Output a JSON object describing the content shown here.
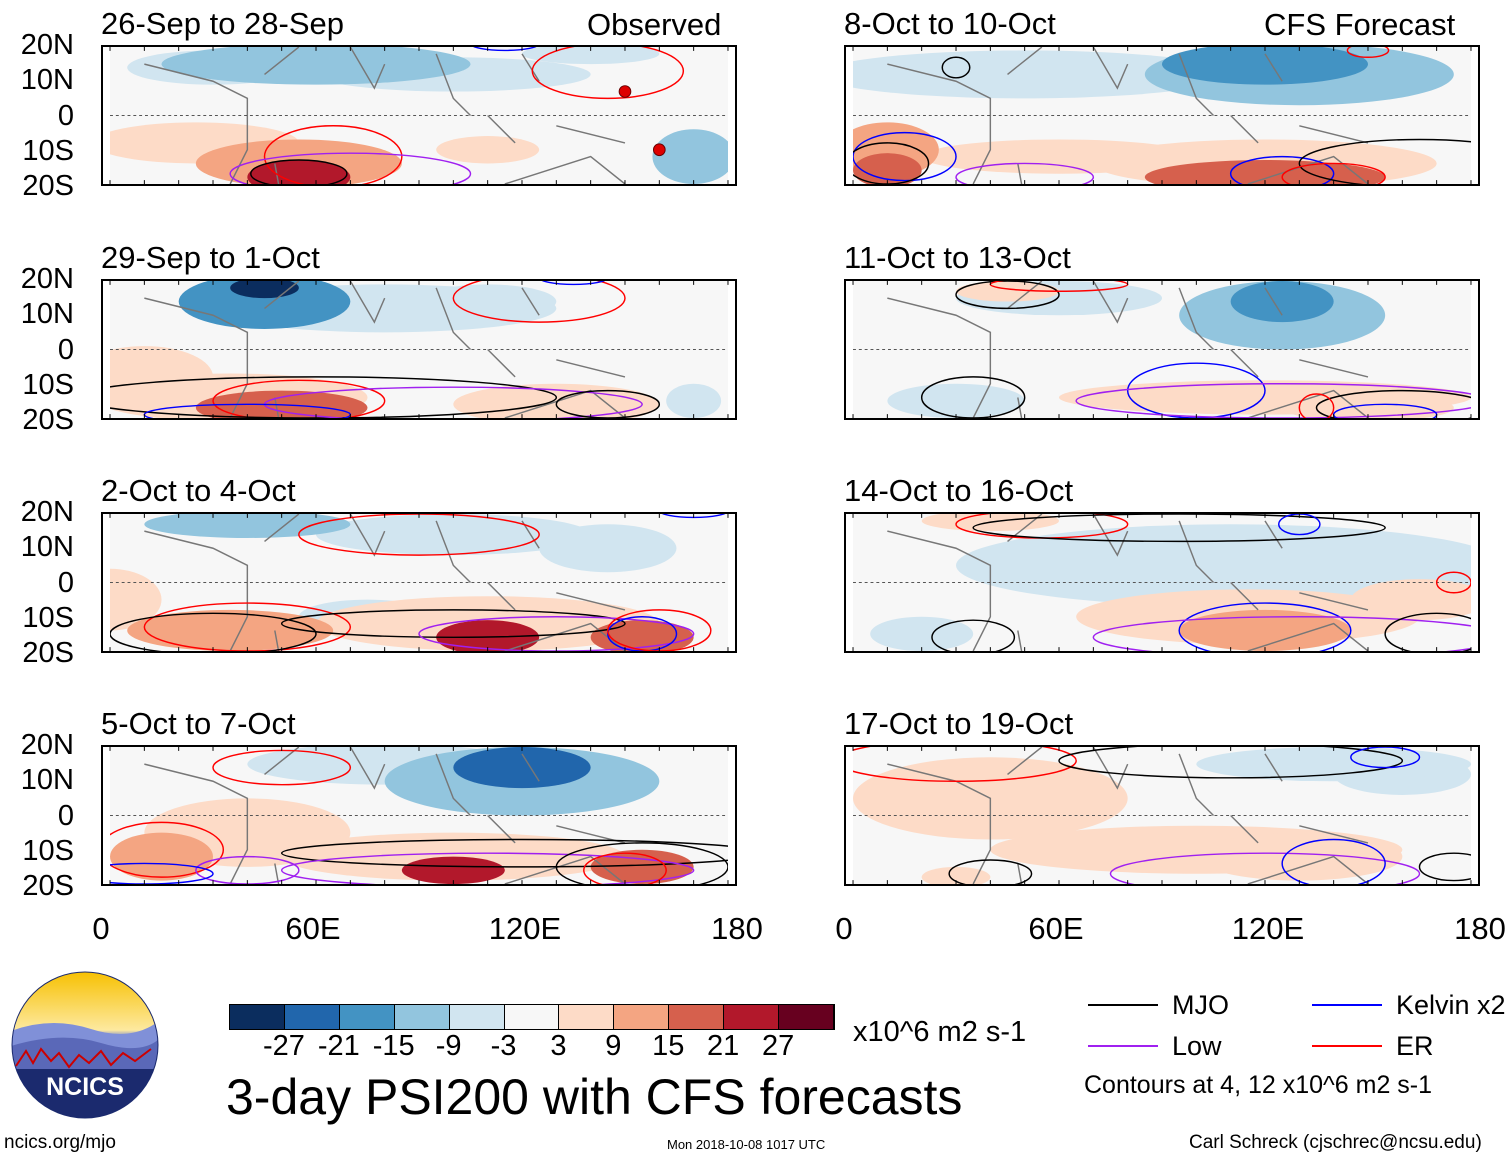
{
  "header": {
    "observed_label": "Observed",
    "forecast_label": "CFS Forecast"
  },
  "y_ticks": [
    "20N",
    "10N",
    "0",
    "10S",
    "20S"
  ],
  "x_ticks": [
    "0",
    "60E",
    "120E",
    "180"
  ],
  "colors": {
    "levels": [
      "#0b2d5e",
      "#2166ac",
      "#4393c3",
      "#92c5de",
      "#d1e5f0",
      "#f7f7f7",
      "#fddbc7",
      "#f4a582",
      "#d6604d",
      "#b2182b",
      "#67001f"
    ],
    "MJO": "#000000",
    "Kelvin": "#0000ff",
    "Low": "#a020f0",
    "ER": "#ff0000"
  },
  "chart_data": {
    "type": "map",
    "x_range": [
      0,
      180
    ],
    "y_range": [
      -20,
      20
    ],
    "level_bounds": [
      -27,
      -21,
      -15,
      -9,
      -3,
      3,
      9,
      15,
      21,
      27
    ],
    "panels": [
      {
        "title": "26-Sep to 28-Sep",
        "anomalies": [
          [
            60,
            15,
            -9,
            45,
            6
          ],
          [
            100,
            12,
            -6,
            40,
            5
          ],
          [
            30,
            14,
            -5,
            25,
            5
          ],
          [
            55,
            -18,
            27,
            15,
            5
          ],
          [
            55,
            -14,
            15,
            30,
            7
          ],
          [
            25,
            -8,
            8,
            30,
            6
          ],
          [
            110,
            -10,
            4,
            15,
            4
          ],
          [
            170,
            -12,
            -9,
            12,
            8
          ],
          [
            140,
            18,
            -3,
            20,
            3
          ]
        ],
        "contours": [
          [
            "ER",
            145,
            13,
            22,
            8
          ],
          [
            "ER",
            65,
            -12,
            20,
            9
          ],
          [
            "Low",
            70,
            -17,
            35,
            6
          ],
          [
            "MJO",
            55,
            -17,
            14,
            4
          ],
          [
            "Kelvin",
            115,
            21,
            10,
            2
          ]
        ],
        "markers": [
          [
            150,
            7
          ],
          [
            160,
            -10
          ]
        ]
      },
      {
        "title": "8-Oct to 10-Oct",
        "anomalies": [
          [
            120,
            15,
            -15,
            30,
            6
          ],
          [
            130,
            12,
            -9,
            45,
            9
          ],
          [
            50,
            12,
            -3,
            60,
            7
          ],
          [
            10,
            -10,
            15,
            15,
            8
          ],
          [
            10,
            -16,
            21,
            10,
            5
          ],
          [
            120,
            -18,
            21,
            35,
            5
          ],
          [
            120,
            -14,
            9,
            50,
            7
          ],
          [
            60,
            -12,
            4,
            40,
            5
          ]
        ],
        "contours": [
          [
            "MJO",
            30,
            14,
            4,
            3
          ],
          [
            "ER",
            150,
            19,
            6,
            2
          ],
          [
            "Kelvin",
            15,
            -12,
            15,
            7
          ],
          [
            "MJO",
            10,
            -14,
            12,
            6
          ],
          [
            "Low",
            50,
            -18,
            20,
            4
          ],
          [
            "Kelvin",
            125,
            -17,
            15,
            5
          ],
          [
            "MJO",
            165,
            -14,
            35,
            7
          ],
          [
            "ER",
            140,
            -18,
            15,
            4
          ]
        ]
      },
      {
        "title": "29-Sep to 1-Oct",
        "anomalies": [
          [
            45,
            14,
            -15,
            25,
            8
          ],
          [
            45,
            18,
            -27,
            10,
            3
          ],
          [
            80,
            12,
            -6,
            50,
            7
          ],
          [
            110,
            14,
            -3,
            20,
            5
          ],
          [
            50,
            -17,
            21,
            25,
            5
          ],
          [
            35,
            -14,
            9,
            40,
            7
          ],
          [
            10,
            -8,
            6,
            20,
            9
          ],
          [
            130,
            -16,
            6,
            30,
            6
          ],
          [
            170,
            -15,
            -3,
            8,
            5
          ]
        ],
        "contours": [
          [
            "ER",
            125,
            15,
            25,
            7
          ],
          [
            "Kelvin",
            135,
            21,
            10,
            2
          ],
          [
            "ER",
            55,
            -15,
            25,
            6
          ],
          [
            "MJO",
            60,
            -14,
            70,
            6
          ],
          [
            "Low",
            100,
            -16,
            55,
            5
          ],
          [
            "Kelvin",
            40,
            -19,
            30,
            3
          ],
          [
            "MJO",
            145,
            -16,
            15,
            4
          ]
        ]
      },
      {
        "title": "11-Oct to 13-Oct",
        "anomalies": [
          [
            125,
            14,
            -15,
            15,
            6
          ],
          [
            125,
            10,
            -9,
            30,
            10
          ],
          [
            60,
            15,
            -3,
            30,
            5
          ],
          [
            30,
            -15,
            -3,
            20,
            5
          ],
          [
            120,
            -14,
            4,
            60,
            5
          ],
          [
            150,
            -17,
            9,
            25,
            4
          ],
          [
            45,
            17,
            4,
            15,
            3
          ]
        ],
        "contours": [
          [
            "MJO",
            45,
            16,
            15,
            4
          ],
          [
            "ER",
            60,
            19,
            20,
            2
          ],
          [
            "Kelvin",
            100,
            -12,
            20,
            8
          ],
          [
            "Low",
            125,
            -15,
            60,
            5
          ],
          [
            "MJO",
            35,
            -14,
            15,
            6
          ],
          [
            "MJO",
            160,
            -17,
            25,
            5
          ],
          [
            "Kelvin",
            155,
            -19,
            15,
            3
          ],
          [
            "ER",
            135,
            -17,
            5,
            4
          ]
        ]
      },
      {
        "title": "2-Oct to 4-Oct",
        "anomalies": [
          [
            40,
            17,
            -9,
            30,
            4
          ],
          [
            145,
            10,
            -6,
            20,
            7
          ],
          [
            100,
            14,
            -3,
            40,
            6
          ],
          [
            35,
            -14,
            15,
            30,
            6
          ],
          [
            110,
            -16,
            27,
            15,
            5
          ],
          [
            110,
            -12,
            9,
            50,
            8
          ],
          [
            155,
            -16,
            21,
            15,
            5
          ],
          [
            0,
            -5,
            6,
            15,
            9
          ],
          [
            75,
            -10,
            -3,
            20,
            5
          ]
        ],
        "contours": [
          [
            "ER",
            90,
            14,
            35,
            6
          ],
          [
            "ER",
            40,
            -13,
            30,
            7
          ],
          [
            "MJO",
            100,
            -12,
            50,
            4
          ],
          [
            "Low",
            130,
            -15,
            40,
            5
          ],
          [
            "MJO",
            30,
            -15,
            30,
            6
          ],
          [
            "Kelvin",
            155,
            -15,
            10,
            5
          ],
          [
            "ER",
            160,
            -14,
            15,
            6
          ],
          [
            "Kelvin",
            170,
            21,
            10,
            2
          ]
        ],
        "markers": []
      },
      {
        "title": "14-Oct to 16-Oct",
        "anomalies": [
          [
            110,
            5,
            -3,
            80,
            12
          ],
          [
            20,
            -15,
            -6,
            15,
            5
          ],
          [
            120,
            -14,
            15,
            25,
            6
          ],
          [
            115,
            -10,
            6,
            50,
            8
          ],
          [
            165,
            -5,
            6,
            20,
            6
          ],
          [
            40,
            18,
            4,
            20,
            3
          ]
        ],
        "contours": [
          [
            "ER",
            55,
            17,
            25,
            4
          ],
          [
            "MJO",
            95,
            16,
            60,
            4
          ],
          [
            "Kelvin",
            130,
            17,
            6,
            3
          ],
          [
            "Kelvin",
            120,
            -14,
            25,
            8
          ],
          [
            "Low",
            130,
            -16,
            60,
            6
          ],
          [
            "MJO",
            170,
            -15,
            15,
            6
          ],
          [
            "MJO",
            35,
            -16,
            12,
            5
          ],
          [
            "ER",
            175,
            0,
            5,
            3
          ]
        ]
      },
      {
        "title": "5-Oct to 7-Oct",
        "anomalies": [
          [
            120,
            14,
            -21,
            20,
            6
          ],
          [
            120,
            10,
            -9,
            40,
            10
          ],
          [
            80,
            15,
            -3,
            40,
            6
          ],
          [
            15,
            -12,
            15,
            15,
            7
          ],
          [
            100,
            -16,
            27,
            15,
            4
          ],
          [
            100,
            -12,
            9,
            50,
            7
          ],
          [
            155,
            -15,
            21,
            15,
            5
          ],
          [
            40,
            -5,
            4,
            30,
            10
          ]
        ],
        "contours": [
          [
            "ER",
            50,
            14,
            20,
            5
          ],
          [
            "ER",
            15,
            -10,
            18,
            8
          ],
          [
            "MJO",
            120,
            -11,
            70,
            4
          ],
          [
            "Low",
            110,
            -16,
            60,
            5
          ],
          [
            "Low",
            40,
            -16,
            15,
            4
          ],
          [
            "MJO",
            155,
            -15,
            25,
            7
          ],
          [
            "ER",
            150,
            -16,
            12,
            5
          ],
          [
            "Kelvin",
            10,
            -17,
            20,
            3
          ]
        ]
      },
      {
        "title": "17-Oct to 19-Oct",
        "anomalies": [
          [
            140,
            15,
            -6,
            40,
            5
          ],
          [
            160,
            12,
            -3,
            20,
            6
          ],
          [
            40,
            5,
            4,
            40,
            12
          ],
          [
            130,
            -12,
            9,
            30,
            7
          ],
          [
            100,
            -10,
            4,
            60,
            7
          ],
          [
            30,
            -18,
            9,
            10,
            3
          ]
        ],
        "contours": [
          [
            "ER",
            30,
            16,
            35,
            6
          ],
          [
            "MJO",
            110,
            16,
            50,
            5
          ],
          [
            "Kelvin",
            155,
            17,
            10,
            3
          ],
          [
            "Low",
            120,
            -17,
            45,
            6
          ],
          [
            "Kelvin",
            140,
            -14,
            15,
            7
          ],
          [
            "MJO",
            40,
            -17,
            12,
            4
          ],
          [
            "MJO",
            175,
            -15,
            10,
            4
          ]
        ]
      }
    ],
    "colorbar": {
      "ticks": [
        "-27",
        "-21",
        "-15",
        "-9",
        "-3",
        "3",
        "9",
        "15",
        "21",
        "27"
      ],
      "units": "x10^6 m2 s-1"
    },
    "legend": [
      {
        "name": "MJO",
        "color_key": "MJO"
      },
      {
        "name": "Kelvin x2",
        "color_key": "Kelvin"
      },
      {
        "name": "Low",
        "color_key": "Low"
      },
      {
        "name": "ER",
        "color_key": "ER"
      }
    ]
  },
  "footer": {
    "title": "3-day PSI200 with CFS forecasts",
    "contours_note": "Contours at 4, 12 x10^6 m2 s-1",
    "author": "Carl Schreck (cjschrec@ncsu.edu)",
    "timestamp": "Mon 2018-10-08 1017 UTC",
    "url": "ncics.org/mjo",
    "logo_text": "NCICS"
  }
}
